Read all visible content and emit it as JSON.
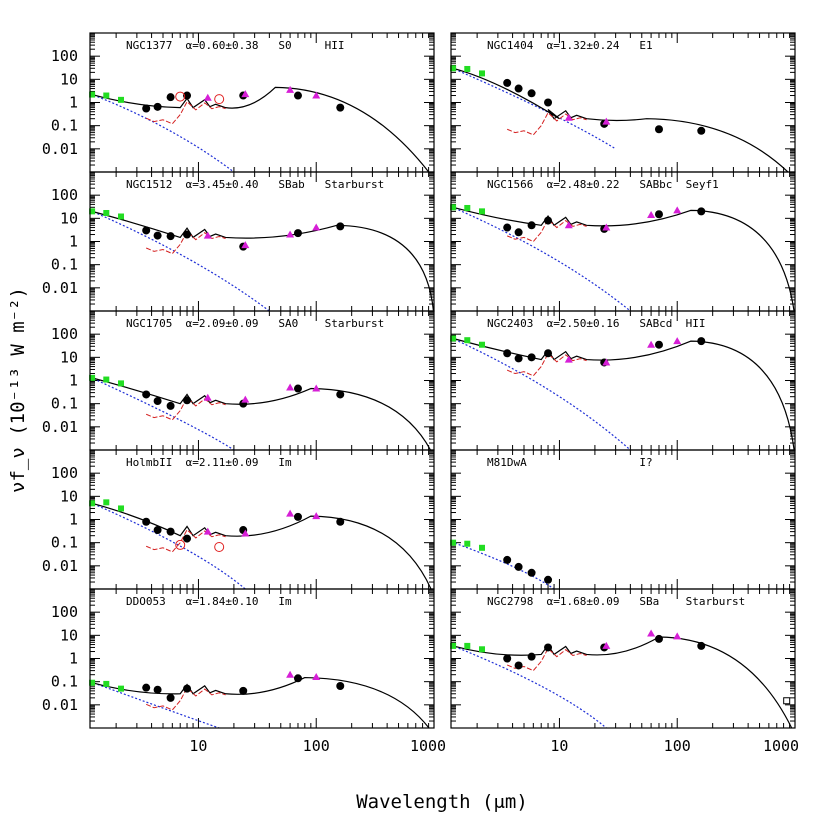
{
  "figure": {
    "xlabel": "Wavelength (μm)",
    "ylabel": "νf_ν (10⁻¹³ W m⁻²)",
    "x_ticks": [
      "10",
      "100",
      "1000"
    ],
    "y_ticks": [
      "100",
      "10",
      "1",
      "0.1",
      "0.01"
    ]
  },
  "chart_data": [
    {
      "type": "scatter",
      "panel": "NGC1377",
      "label": "NGC1377  α=0.60±0.38   S0     HII",
      "xlim": [
        1.2,
        1000
      ],
      "ylim": [
        0.001,
        1000
      ],
      "x_log": true,
      "y_log": true,
      "green": [
        [
          1.25,
          2.2
        ],
        [
          1.65,
          2.0
        ],
        [
          2.2,
          1.3
        ]
      ],
      "black": [
        [
          3.6,
          0.55
        ],
        [
          4.5,
          0.65
        ],
        [
          5.8,
          1.7
        ],
        [
          8.0,
          2.0
        ],
        [
          24,
          2.0
        ],
        [
          70,
          2.0
        ],
        [
          160,
          0.6
        ]
      ],
      "magenta": [
        [
          12,
          1.6
        ],
        [
          25,
          2.3
        ],
        [
          60,
          3.5
        ],
        [
          100,
          2.0
        ]
      ],
      "open_red": [
        [
          7,
          1.8
        ],
        [
          15,
          1.4
        ]
      ],
      "model_peak": [
        45,
        4.5
      ],
      "stellar_tail": [
        [
          1.2,
          2.4
        ],
        [
          6,
          0.1
        ],
        [
          20,
          0.001
        ]
      ],
      "ir_bump_start": [
        7,
        0.6
      ]
    },
    {
      "type": "scatter",
      "panel": "NGC1404",
      "label": "NGC1404  α=1.32±0.24   E1",
      "xlim": [
        1.2,
        1000
      ],
      "ylim": [
        0.001,
        1000
      ],
      "x_log": true,
      "y_log": true,
      "green": [
        [
          1.25,
          30
        ],
        [
          1.65,
          28
        ],
        [
          2.2,
          18
        ]
      ],
      "black": [
        [
          3.6,
          7
        ],
        [
          4.5,
          4
        ],
        [
          5.8,
          2.5
        ],
        [
          8.0,
          1.0
        ],
        [
          24,
          0.12
        ],
        [
          70,
          0.07
        ],
        [
          160,
          0.06
        ]
      ],
      "magenta": [
        [
          12,
          0.22
        ],
        [
          25,
          0.15
        ]
      ],
      "open_red": [],
      "model_peak": [
        55,
        0.2
      ],
      "stellar_tail": [
        [
          1.2,
          32
        ],
        [
          10,
          0.3
        ],
        [
          30,
          0.01
        ]
      ],
      "ir_bump_start": [
        10,
        0.2
      ]
    },
    {
      "type": "scatter",
      "panel": "NGC1512",
      "label": "NGC1512  α=3.45±0.40   SBab   Starburst",
      "xlim": [
        1.2,
        1000
      ],
      "ylim": [
        0.001,
        1000
      ],
      "x_log": true,
      "y_log": true,
      "green": [
        [
          1.25,
          20
        ],
        [
          1.65,
          17
        ],
        [
          2.2,
          12
        ]
      ],
      "black": [
        [
          3.6,
          3.0
        ],
        [
          4.5,
          1.8
        ],
        [
          5.8,
          1.7
        ],
        [
          8.0,
          2.0
        ],
        [
          24,
          0.6
        ],
        [
          70,
          2.3
        ],
        [
          160,
          4.5
        ]
      ],
      "magenta": [
        [
          12,
          1.8
        ],
        [
          25,
          0.7
        ],
        [
          60,
          2.0
        ],
        [
          100,
          4.0
        ]
      ],
      "open_red": [],
      "model_peak": [
        150,
        5.0
      ],
      "stellar_tail": [
        [
          1.2,
          22
        ],
        [
          10,
          0.2
        ],
        [
          40,
          0.001
        ]
      ],
      "ir_bump_start": [
        7,
        1.5
      ]
    },
    {
      "type": "scatter",
      "panel": "NGC1566",
      "label": "NGC1566  α=2.48±0.22   SABbc  Seyf1",
      "xlim": [
        1.2,
        1000
      ],
      "ylim": [
        0.001,
        1000
      ],
      "x_log": true,
      "y_log": true,
      "green": [
        [
          1.25,
          30
        ],
        [
          1.65,
          28
        ],
        [
          2.2,
          20
        ]
      ],
      "black": [
        [
          3.6,
          4
        ],
        [
          4.5,
          2.5
        ],
        [
          5.8,
          5
        ],
        [
          8.0,
          8
        ],
        [
          24,
          3.5
        ],
        [
          70,
          15
        ],
        [
          160,
          20
        ]
      ],
      "magenta": [
        [
          12,
          5
        ],
        [
          25,
          4
        ],
        [
          60,
          14
        ],
        [
          100,
          22
        ]
      ],
      "open_red": [],
      "model_peak": [
        130,
        22
      ],
      "stellar_tail": [
        [
          1.2,
          32
        ],
        [
          10,
          0.3
        ],
        [
          40,
          0.001
        ]
      ],
      "ir_bump_start": [
        7,
        5
      ]
    },
    {
      "type": "scatter",
      "panel": "NGC1705",
      "label": "NGC1705  α=2.09±0.09   SA0    Starburst",
      "xlim": [
        1.2,
        1000
      ],
      "ylim": [
        0.001,
        1000
      ],
      "x_log": true,
      "y_log": true,
      "green": [
        [
          1.25,
          1.3
        ],
        [
          1.65,
          1.1
        ],
        [
          2.2,
          0.75
        ]
      ],
      "black": [
        [
          3.6,
          0.25
        ],
        [
          4.5,
          0.13
        ],
        [
          5.8,
          0.08
        ],
        [
          8.0,
          0.14
        ],
        [
          24,
          0.1
        ],
        [
          70,
          0.45
        ],
        [
          160,
          0.25
        ]
      ],
      "magenta": [
        [
          12,
          0.18
        ],
        [
          25,
          0.15
        ],
        [
          60,
          0.5
        ],
        [
          100,
          0.45
        ]
      ],
      "open_red": [],
      "model_peak": [
        90,
        0.45
      ],
      "stellar_tail": [
        [
          1.2,
          1.4
        ],
        [
          10,
          0.01
        ],
        [
          20,
          0.001
        ]
      ],
      "ir_bump_start": [
        7,
        0.1
      ]
    },
    {
      "type": "scatter",
      "panel": "NGC2403",
      "label": "NGC2403  α=2.50±0.16   SABcd  HII",
      "xlim": [
        1.2,
        1000
      ],
      "ylim": [
        0.001,
        1000
      ],
      "x_log": true,
      "y_log": true,
      "green": [
        [
          1.25,
          65
        ],
        [
          1.65,
          55
        ],
        [
          2.2,
          35
        ]
      ],
      "black": [
        [
          3.6,
          15
        ],
        [
          4.5,
          9
        ],
        [
          5.8,
          10
        ],
        [
          8.0,
          15
        ],
        [
          24,
          6
        ],
        [
          70,
          35
        ],
        [
          160,
          50
        ]
      ],
      "magenta": [
        [
          12,
          8
        ],
        [
          25,
          6
        ],
        [
          60,
          35
        ],
        [
          100,
          50
        ]
      ],
      "open_red": [],
      "model_peak": [
        130,
        50
      ],
      "stellar_tail": [
        [
          1.2,
          70
        ],
        [
          10,
          0.5
        ],
        [
          40,
          0.001
        ]
      ],
      "ir_bump_start": [
        7,
        8
      ]
    },
    {
      "type": "scatter",
      "panel": "HolmbII",
      "label": "HolmbII  α=2.11±0.09   Im",
      "xlim": [
        1.2,
        1000
      ],
      "ylim": [
        0.001,
        1000
      ],
      "x_log": true,
      "y_log": true,
      "green": [
        [
          1.25,
          5
        ],
        [
          1.65,
          5.5
        ],
        [
          2.2,
          3
        ]
      ],
      "black": [
        [
          3.6,
          0.8
        ],
        [
          4.5,
          0.35
        ],
        [
          5.8,
          0.3
        ],
        [
          8.0,
          0.15
        ],
        [
          24,
          0.35
        ],
        [
          70,
          1.3
        ],
        [
          160,
          0.8
        ]
      ],
      "magenta": [
        [
          12,
          0.3
        ],
        [
          25,
          0.25
        ],
        [
          60,
          1.8
        ],
        [
          100,
          1.4
        ]
      ],
      "open_red": [
        [
          7,
          0.08
        ],
        [
          15,
          0.065
        ]
      ],
      "model_peak": [
        90,
        1.4
      ],
      "stellar_tail": [
        [
          1.2,
          5.5
        ],
        [
          10,
          0.05
        ],
        [
          25,
          0.001
        ]
      ],
      "ir_bump_start": [
        7,
        0.2
      ]
    },
    {
      "type": "scatter",
      "panel": "M81DwA",
      "label": "M81DwA                 I?",
      "xlim": [
        1.2,
        1000
      ],
      "ylim": [
        0.001,
        1000
      ],
      "x_log": true,
      "y_log": true,
      "green": [
        [
          1.25,
          0.1
        ],
        [
          1.65,
          0.09
        ],
        [
          2.2,
          0.06
        ]
      ],
      "black": [
        [
          3.6,
          0.018
        ],
        [
          4.5,
          0.009
        ],
        [
          5.8,
          0.005
        ],
        [
          8.0,
          0.0025
        ]
      ],
      "magenta": [],
      "open_red": [],
      "model_peak": null,
      "stellar_tail": [
        [
          1.2,
          0.11
        ],
        [
          5,
          0.008
        ],
        [
          9,
          0.001
        ]
      ],
      "ir_bump_start": null
    },
    {
      "type": "scatter",
      "panel": "DDO053",
      "label": "DDO053   α=1.84±0.10   Im",
      "xlim": [
        1.2,
        1000
      ],
      "ylim": [
        0.001,
        1000
      ],
      "x_log": true,
      "y_log": true,
      "green": [
        [
          1.25,
          0.09
        ],
        [
          1.65,
          0.08
        ],
        [
          2.2,
          0.05
        ]
      ],
      "black": [
        [
          3.6,
          0.055
        ],
        [
          4.5,
          0.045
        ],
        [
          5.8,
          0.02
        ],
        [
          8.0,
          0.05
        ],
        [
          24,
          0.04
        ],
        [
          70,
          0.14
        ],
        [
          160,
          0.065
        ]
      ],
      "magenta": [
        [
          60,
          0.2
        ],
        [
          100,
          0.16
        ]
      ],
      "open_red": [],
      "model_peak": [
        80,
        0.15
      ],
      "stellar_tail": [
        [
          1.2,
          0.1
        ],
        [
          8,
          0.003
        ],
        [
          15,
          0.001
        ]
      ],
      "ir_bump_start": [
        7,
        0.03
      ]
    },
    {
      "type": "scatter",
      "panel": "NGC2798",
      "label": "NGC2798  α=1.68±0.09   SBa    Starburst",
      "xlim": [
        1.2,
        1000
      ],
      "ylim": [
        0.001,
        1000
      ],
      "x_log": true,
      "y_log": true,
      "green": [
        [
          1.25,
          3.5
        ],
        [
          1.65,
          3.5
        ],
        [
          2.2,
          2.5
        ]
      ],
      "black": [
        [
          3.6,
          1.0
        ],
        [
          4.5,
          0.5
        ],
        [
          5.8,
          1.2
        ],
        [
          8.0,
          3.0
        ],
        [
          24,
          3.0
        ],
        [
          70,
          7.0
        ],
        [
          160,
          3.5
        ]
      ],
      "magenta": [
        [
          25,
          3.5
        ],
        [
          60,
          12
        ],
        [
          100,
          9
        ]
      ],
      "open_red": [],
      "open_square": [
        [
          850,
          0.015
        ]
      ],
      "model_peak": [
        70,
        8.5
      ],
      "stellar_tail": [
        [
          1.2,
          3.8
        ],
        [
          10,
          0.05
        ],
        [
          25,
          0.001
        ]
      ],
      "ir_bump_start": [
        7,
        1.5
      ]
    }
  ],
  "colors": {
    "model": "#000000",
    "stellar_tail": "#1f2fd6",
    "irs_spectrum": "#d42020",
    "green": "#22dd22",
    "magenta": "#d61fd6",
    "black": "#000000",
    "open_red": "#e02020"
  }
}
